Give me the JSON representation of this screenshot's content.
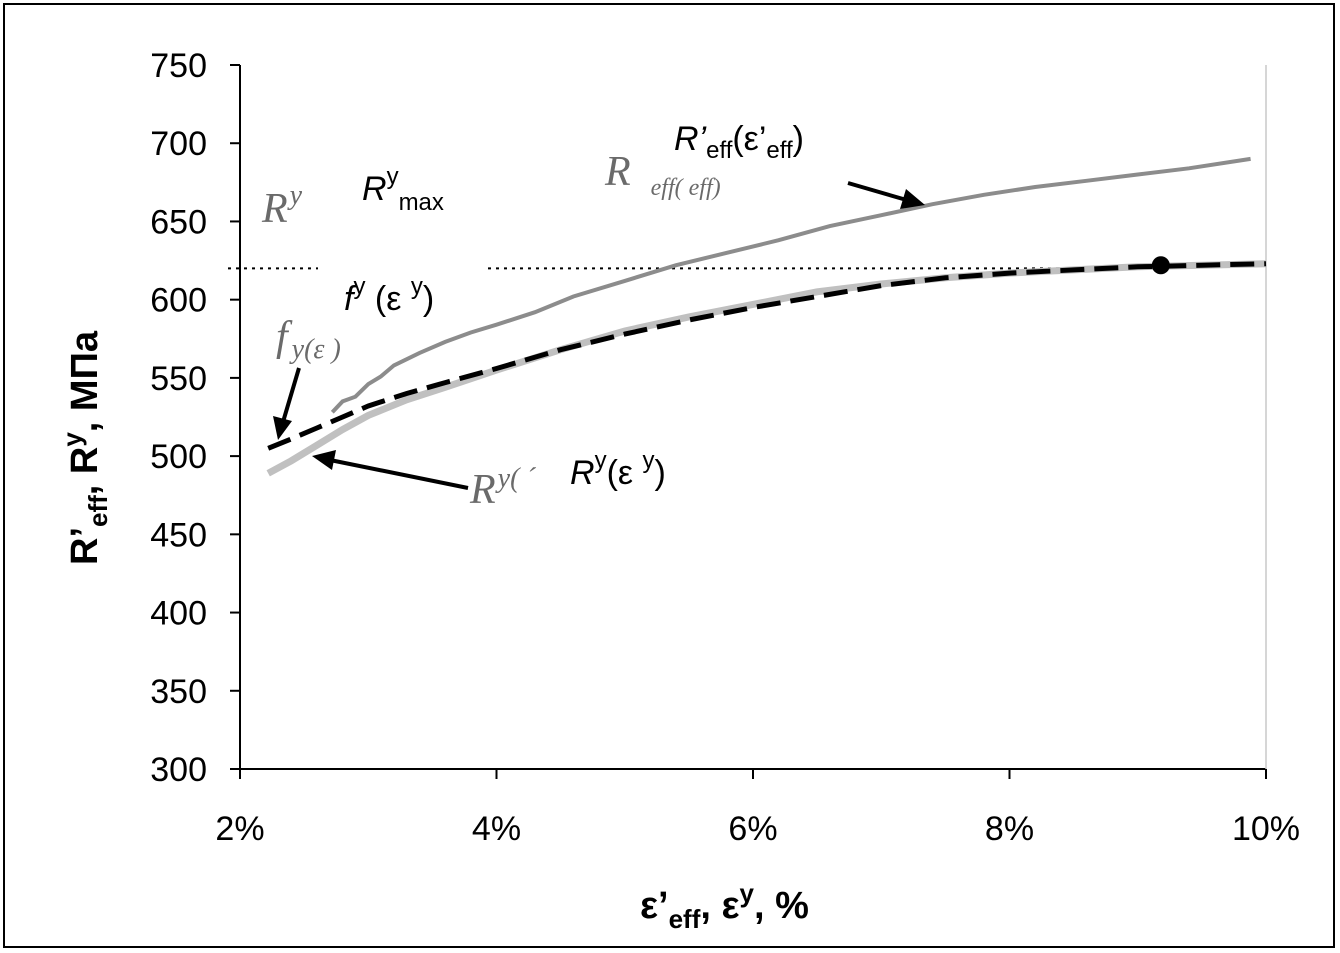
{
  "chart_data": {
    "type": "line",
    "xlabel": {
      "main": "ε’",
      "sub1": "eff",
      "mid": ", ε",
      "sup": "y",
      "tail": ", %"
    },
    "ylabel": {
      "main": "R’",
      "sub1": "eff",
      "mid": ", R",
      "sup": "y",
      "tail": ", МПа"
    },
    "xlim": [
      0.02,
      0.1
    ],
    "ylim": [
      300,
      750
    ],
    "x_ticks": [
      {
        "value": 0.02,
        "label": "2%"
      },
      {
        "value": 0.04,
        "label": "4%"
      },
      {
        "value": 0.06,
        "label": "6%"
      },
      {
        "value": 0.08,
        "label": "8%"
      },
      {
        "value": 0.1,
        "label": "10%"
      }
    ],
    "y_ticks": [
      {
        "value": 300,
        "label": "300"
      },
      {
        "value": 350,
        "label": "350"
      },
      {
        "value": 400,
        "label": "400"
      },
      {
        "value": 450,
        "label": "450"
      },
      {
        "value": 500,
        "label": "500"
      },
      {
        "value": 550,
        "label": "550"
      },
      {
        "value": 600,
        "label": "600"
      },
      {
        "value": 650,
        "label": "650"
      },
      {
        "value": 700,
        "label": "700"
      },
      {
        "value": 750,
        "label": "750"
      }
    ],
    "grid": false,
    "series": [
      {
        "key": "r_eff",
        "style": "solid",
        "color": "#8c8c8c",
        "x": [
          0.0272,
          0.028,
          0.029,
          0.03,
          0.031,
          0.032,
          0.034,
          0.036,
          0.038,
          0.04,
          0.043,
          0.046,
          0.05,
          0.054,
          0.058,
          0.062,
          0.066,
          0.07,
          0.074,
          0.078,
          0.082,
          0.086,
          0.09,
          0.094,
          0.0988
        ],
        "y": [
          528,
          535,
          538,
          546,
          551,
          558,
          566,
          573,
          579,
          584,
          592,
          602,
          612,
          622,
          630,
          638,
          647,
          654,
          661,
          667,
          672,
          676,
          680,
          684,
          690
        ]
      },
      {
        "key": "r_y",
        "style": "solid",
        "color": "#c0c0c0",
        "x": [
          0.0222,
          0.024,
          0.026,
          0.028,
          0.03,
          0.033,
          0.036,
          0.04,
          0.045,
          0.05,
          0.055,
          0.06,
          0.065,
          0.07,
          0.075,
          0.08,
          0.085,
          0.09,
          0.095,
          0.1
        ],
        "y": [
          489,
          497,
          507,
          517,
          526,
          536,
          544,
          555,
          568,
          580,
          589,
          597,
          605,
          610,
          614,
          617,
          619,
          621,
          622,
          623
        ]
      },
      {
        "key": "f_y",
        "style": "dashed",
        "color": "#000000",
        "x": [
          0.0222,
          0.024,
          0.026,
          0.028,
          0.03,
          0.033,
          0.036,
          0.04,
          0.045,
          0.05,
          0.055,
          0.06,
          0.065,
          0.07,
          0.075,
          0.08,
          0.085,
          0.09,
          0.095,
          0.1
        ],
        "y": [
          505,
          511,
          518,
          525,
          532,
          540,
          547,
          556,
          568,
          578,
          587,
          595,
          602,
          609,
          614,
          617,
          619,
          621,
          622,
          623
        ]
      }
    ],
    "reference_line": {
      "y": 620,
      "style": "dotted"
    },
    "marker_point": {
      "x": 0.0918,
      "y": 622
    },
    "annotations": {
      "r_eff": {
        "pre": "R’",
        "sub1": "eff",
        "mid": "(ε’",
        "sub2": "eff",
        "post": ")"
      },
      "r_max": {
        "pre": "R",
        "sup": "y",
        "sub": "max"
      },
      "f_y": {
        "pre": "f",
        "sup1": "y",
        "mid": " (ε ",
        "sup2": "y",
        "post": ")"
      },
      "r_y": {
        "pre": "R",
        "sup1": "y",
        "mid": "(ε ",
        "sup2": "y",
        "post": ")"
      }
    },
    "ghost_text": {
      "r_eff": "R",
      "r_eff_sub": "eff( eff)",
      "r_max": "R",
      "r_max_sup": "y",
      "f_y": "f",
      "f_y_rest": "y(ε )",
      "r_y": "R",
      "r_y_rest": "y(  ´"
    }
  }
}
